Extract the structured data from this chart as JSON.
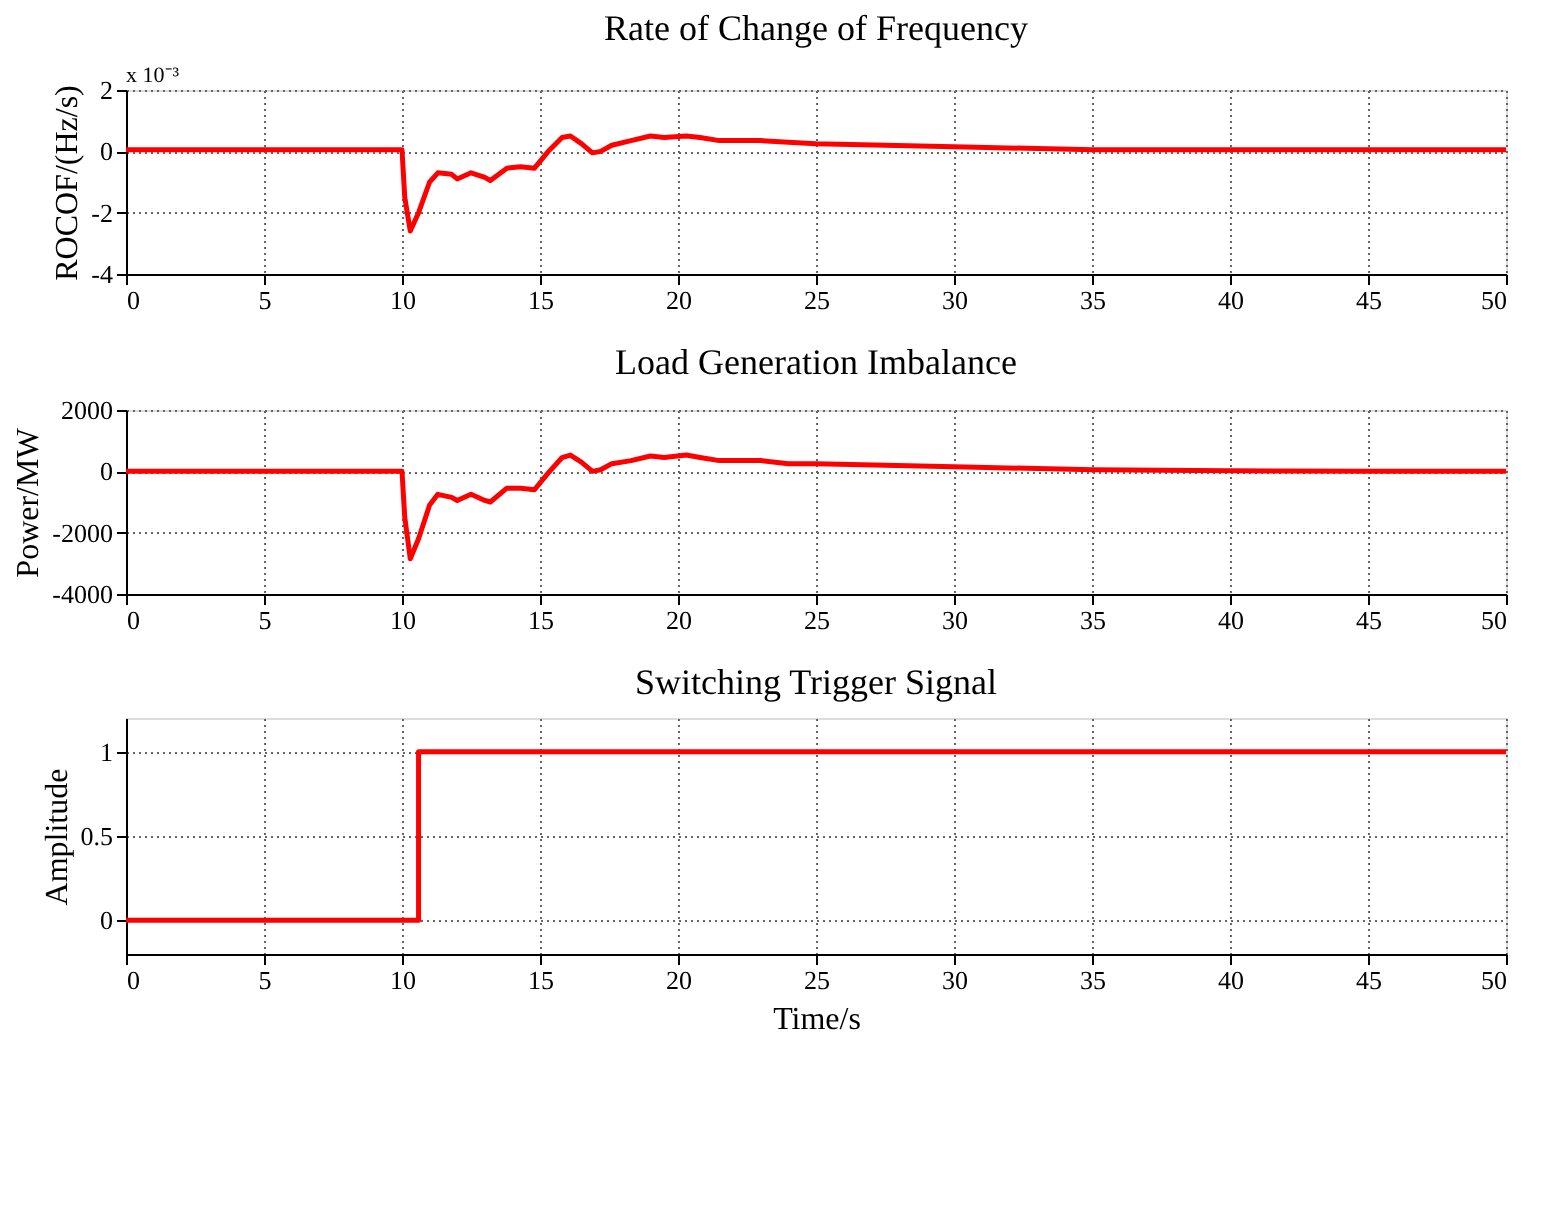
{
  "chart_data": [
    {
      "type": "line",
      "title": "Rate of Change of Frequency",
      "ylabel": "ROCOF/(Hz/s)",
      "annotations": [
        "x 10⁻³"
      ],
      "xlim": [
        0,
        50
      ],
      "xticks": [
        0,
        5,
        10,
        15,
        20,
        25,
        30,
        35,
        40,
        45,
        50
      ],
      "ylim": [
        -4,
        2
      ],
      "yticks": [
        -4,
        -2,
        0,
        2
      ],
      "grid": true,
      "series": [
        {
          "color": "#ff0000",
          "x": [
            0,
            10,
            10.1,
            10.3,
            10.6,
            11,
            11.3,
            11.8,
            12,
            12.5,
            13,
            13.2,
            13.8,
            14.3,
            14.8,
            15.3,
            15.8,
            16.1,
            16.5,
            16.9,
            17.2,
            17.6,
            18.3,
            19,
            19.5,
            20.3,
            20.8,
            21.5,
            23,
            24,
            25,
            30,
            35,
            40,
            45,
            50
          ],
          "values": [
            0.05,
            0.05,
            -1.5,
            -2.6,
            -2.0,
            -1.0,
            -0.7,
            -0.75,
            -0.9,
            -0.7,
            -0.85,
            -0.95,
            -0.55,
            -0.5,
            -0.55,
            0,
            0.45,
            0.5,
            0.25,
            -0.05,
            0,
            0.2,
            0.35,
            0.5,
            0.45,
            0.5,
            0.45,
            0.35,
            0.35,
            0.3,
            0.25,
            0.15,
            0.05,
            0.05,
            0.05,
            0.05
          ]
        }
      ]
    },
    {
      "type": "line",
      "title": "Load Generation Imbalance",
      "ylabel": "Power/MW",
      "xlim": [
        0,
        50
      ],
      "xticks": [
        0,
        5,
        10,
        15,
        20,
        25,
        30,
        35,
        40,
        45,
        50
      ],
      "ylim": [
        -4000,
        2000
      ],
      "yticks": [
        -4000,
        -2000,
        0,
        2000
      ],
      "grid": true,
      "series": [
        {
          "color": "#ff0000",
          "x": [
            0,
            10,
            10.1,
            10.3,
            10.6,
            11,
            11.3,
            11.8,
            12,
            12.5,
            13,
            13.2,
            13.8,
            14.3,
            14.8,
            15.3,
            15.8,
            16.1,
            16.5,
            16.9,
            17.2,
            17.6,
            18.3,
            19,
            19.5,
            20.3,
            20.8,
            21.5,
            23,
            24,
            25,
            30,
            35,
            40,
            45,
            50
          ],
          "values": [
            0,
            0,
            -1500,
            -2850,
            -2200,
            -1100,
            -750,
            -850,
            -950,
            -750,
            -950,
            -1000,
            -550,
            -550,
            -600,
            -50,
            450,
            530,
            300,
            0,
            50,
            250,
            350,
            500,
            450,
            530,
            450,
            350,
            350,
            250,
            250,
            150,
            50,
            20,
            0,
            0
          ]
        }
      ]
    },
    {
      "type": "line",
      "title": "Switching Trigger Signal",
      "xlabel": "Time/s",
      "ylabel": "Amplitude",
      "xlim": [
        0,
        50
      ],
      "xticks": [
        0,
        5,
        10,
        15,
        20,
        25,
        30,
        35,
        40,
        45,
        50
      ],
      "ylim": [
        -0.2,
        1.2
      ],
      "yticks": [
        0,
        0.5,
        1
      ],
      "grid": true,
      "series": [
        {
          "color": "#ff0000",
          "x": [
            0,
            10.6,
            10.6,
            50
          ],
          "values": [
            0,
            0,
            1,
            1
          ]
        }
      ]
    }
  ]
}
